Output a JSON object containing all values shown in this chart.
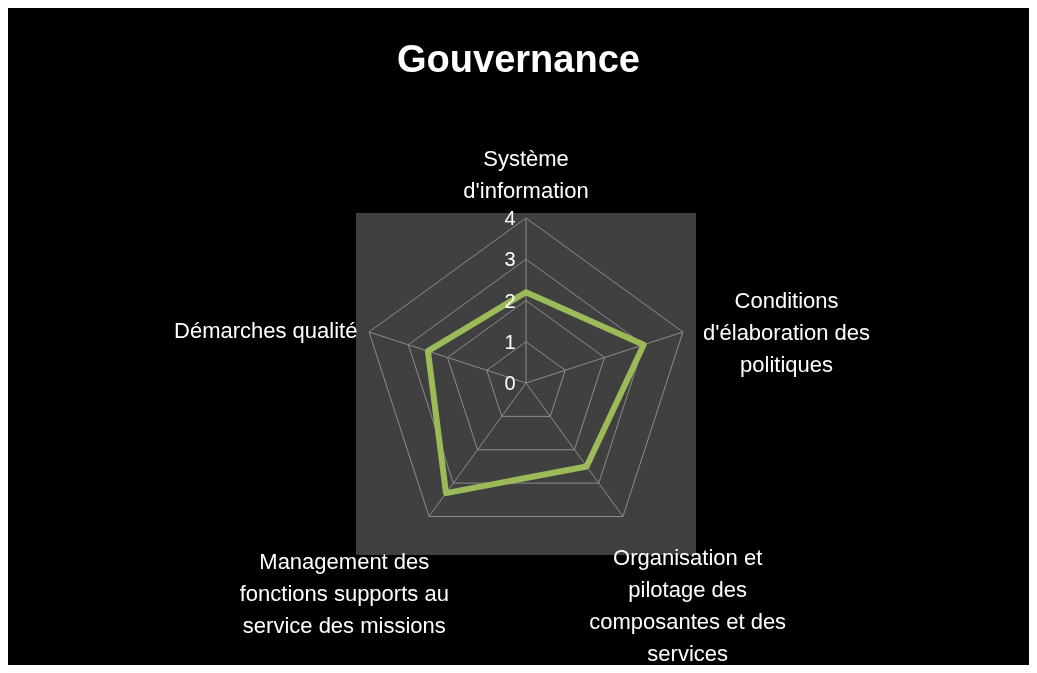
{
  "chart_data": {
    "type": "radar",
    "title": "Gouvernance",
    "categories": [
      "Système d'information",
      "Conditions d'élaboration des politiques",
      "Organisation et pilotage des composantes et des services",
      "Management des fonctions supports au service des missions",
      "Démarches qualité"
    ],
    "series": [
      {
        "color": "#9bbb59",
        "values": [
          2.2,
          3.0,
          2.5,
          3.3,
          2.5
        ]
      }
    ],
    "ylim": [
      0,
      4
    ],
    "yticks": [
      0,
      1,
      2,
      3,
      4
    ],
    "grid": true
  }
}
